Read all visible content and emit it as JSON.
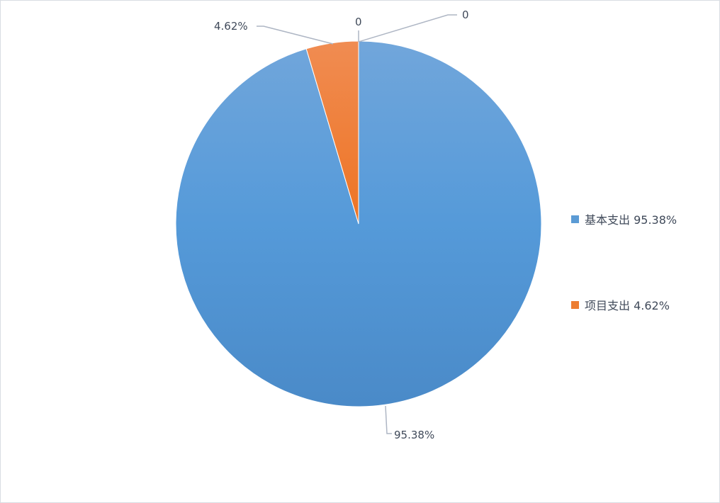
{
  "chart_data": {
    "type": "pie",
    "title": "",
    "slices": [
      {
        "name": "基本支出",
        "value": 95.38,
        "label": "95.38%",
        "legend": "基本支出 95.38%",
        "color": "#5b9bd5"
      },
      {
        "name": "项目支出",
        "value": 4.62,
        "label": "4.62%",
        "legend": "项目支出 4.62%",
        "color": "#ed7d31"
      },
      {
        "value": 0,
        "label": "0"
      },
      {
        "value": 0,
        "label": "0"
      }
    ],
    "legend_position": "right",
    "start_angle": "top, clockwise"
  }
}
